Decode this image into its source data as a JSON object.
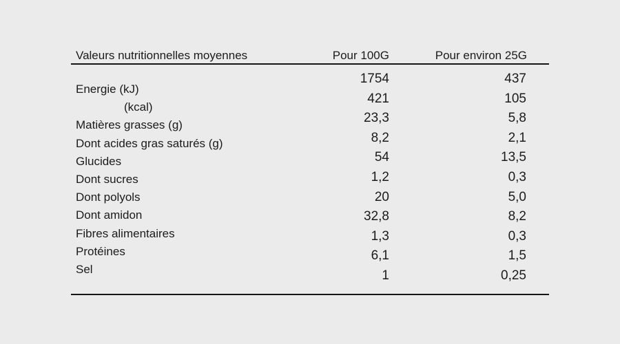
{
  "table": {
    "title": "Valeurs nutritionnelles moyennes",
    "column_headers": {
      "per_100g": "Pour 100G",
      "per_25g": "Pour environ 25G"
    },
    "rows": [
      {
        "label": "Energie (kJ)",
        "per_100g": "1754",
        "per_25g": "437"
      },
      {
        "label": "(kcal)",
        "per_100g": "421",
        "per_25g": "105"
      },
      {
        "label": "Matières grasses (g)",
        "per_100g": "23,3",
        "per_25g": "5,8"
      },
      {
        "label": "Dont acides gras saturés (g)",
        "per_100g": "8,2",
        "per_25g": "2,1"
      },
      {
        "label": "Glucides",
        "per_100g": "54",
        "per_25g": "13,5"
      },
      {
        "label": "Dont sucres",
        "per_100g": "1,2",
        "per_25g": "0,3"
      },
      {
        "label": "Dont polyols",
        "per_100g": "20",
        "per_25g": "5,0"
      },
      {
        "label": "Dont amidon",
        "per_100g": "32,8",
        "per_25g": "8,2"
      },
      {
        "label": "Fibres alimentaires",
        "per_100g": "1,3",
        "per_25g": "0,3"
      },
      {
        "label": "Protéines",
        "per_100g": "6,1",
        "per_25g": "1,5"
      },
      {
        "label": "Sel",
        "per_100g": "1",
        "per_25g": "0,25"
      }
    ]
  },
  "colors": {
    "background": "#ebebeb",
    "text": "#1b1b1b",
    "rule": "#141414"
  }
}
